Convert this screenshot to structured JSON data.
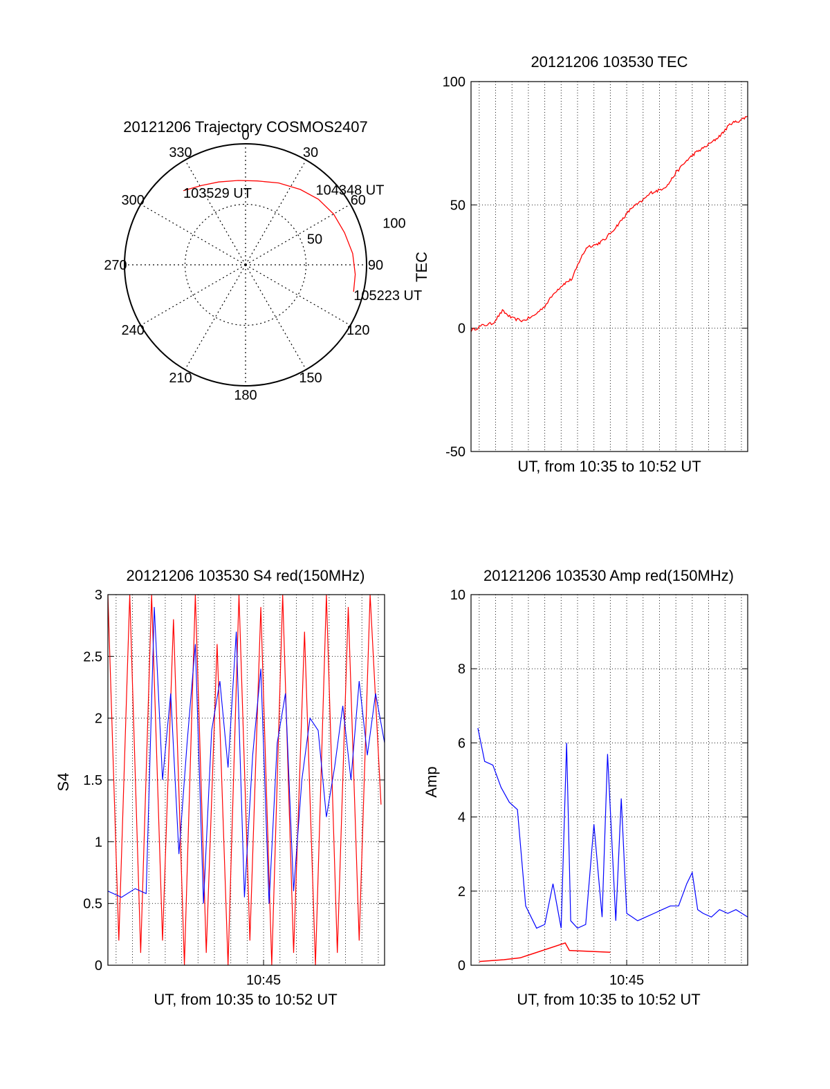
{
  "chart_data": [
    {
      "type": "polar",
      "title": "20121206 Trajectory COSMOS2407",
      "angle_labels": [
        "0",
        "30",
        "60",
        "90",
        "120",
        "150",
        "180",
        "210",
        "240",
        "270",
        "300",
        "330"
      ],
      "radial_tick_labels": [
        "50",
        "100"
      ],
      "radial_ticks": [
        50,
        100
      ],
      "radial_max": 100,
      "grid": true,
      "series": [
        {
          "color": "#ff0000",
          "points": [
            {
              "azimuth": 320,
              "zenith_distance": 80
            },
            {
              "azimuth": 331,
              "zenith_distance": 75
            },
            {
              "azimuth": 342,
              "zenith_distance": 72
            },
            {
              "azimuth": 355,
              "zenith_distance": 70
            },
            {
              "azimuth": 8,
              "zenith_distance": 70
            },
            {
              "azimuth": 22,
              "zenith_distance": 73
            },
            {
              "azimuth": 36,
              "zenith_distance": 77
            },
            {
              "azimuth": 48,
              "zenith_distance": 81
            },
            {
              "azimuth": 60,
              "zenith_distance": 84
            },
            {
              "azimuth": 72,
              "zenith_distance": 86
            },
            {
              "azimuth": 84,
              "zenith_distance": 89
            },
            {
              "azimuth": 95,
              "zenith_distance": 91
            },
            {
              "azimuth": 104,
              "zenith_distance": 92
            }
          ]
        }
      ],
      "annotations": [
        {
          "text": "103529 UT",
          "azimuth": 320,
          "zenith_distance": 80
        },
        {
          "text": "104348 UT",
          "azimuth": 45,
          "zenith_distance": 82
        },
        {
          "text": "105223 UT",
          "azimuth": 104,
          "zenith_distance": 92
        }
      ]
    },
    {
      "type": "line",
      "title": "20121206 103530 TEC",
      "xlabel": "UT, from 10:35 to 10:52 UT",
      "ylabel": "TEC",
      "xlim": [
        "10:35:30",
        "10:52:23"
      ],
      "ylim": [
        -50,
        100
      ],
      "y_ticks": [
        -50,
        0,
        50,
        100
      ],
      "x_tick_labels": [],
      "grid": true,
      "series": [
        {
          "color": "#ff0000",
          "x": [
            "10:35:30",
            "10:36:10",
            "10:36:50",
            "10:37:25",
            "10:38:00",
            "10:38:40",
            "10:39:20",
            "10:40:00",
            "10:40:40",
            "10:41:10",
            "10:41:40",
            "10:42:10",
            "10:42:35",
            "10:43:10",
            "10:43:40",
            "10:44:20",
            "10:44:50",
            "10:45:20",
            "10:45:50",
            "10:46:30",
            "10:47:00",
            "10:47:30",
            "10:48:00",
            "10:48:40",
            "10:49:10",
            "10:49:40",
            "10:50:20",
            "10:50:50",
            "10:51:20",
            "10:51:50",
            "10:52:23"
          ],
          "y": [
            -1,
            1,
            2,
            7,
            4,
            3,
            5,
            9,
            15,
            18,
            20,
            28,
            33,
            34,
            36,
            41,
            45,
            49,
            51,
            55,
            56,
            58,
            63,
            68,
            71,
            73,
            76,
            79,
            83,
            84,
            86
          ]
        }
      ]
    },
    {
      "type": "line",
      "title": "20121206 103530 S4 red(150MHz)",
      "xlabel": "UT, from 10:35 to 10:52 UT",
      "ylabel": "S4",
      "xlim": [
        "10:35:30",
        "10:52:23"
      ],
      "ylim": [
        0,
        3
      ],
      "y_tick_labels": [
        "0",
        "0.5",
        "1",
        "1.5",
        "2",
        "2.5",
        "3"
      ],
      "y_ticks": [
        0,
        0.5,
        1,
        1.5,
        2,
        2.5,
        3
      ],
      "x_tick_labels": [
        "10:45"
      ],
      "x_ticks": [
        "10:45:00"
      ],
      "grid": true,
      "series": [
        {
          "color": "#ff0000",
          "x": [
            "10:35:30",
            "10:36:10",
            "10:36:50",
            "10:37:30",
            "10:38:10",
            "10:38:50",
            "10:39:30",
            "10:40:10",
            "10:40:50",
            "10:41:30",
            "10:42:10",
            "10:42:50",
            "10:43:30",
            "10:44:10",
            "10:44:50",
            "10:45:30",
            "10:46:10",
            "10:46:50",
            "10:47:30",
            "10:48:10",
            "10:48:50",
            "10:49:30",
            "10:50:10",
            "10:50:50",
            "10:51:30",
            "10:52:10"
          ],
          "y": [
            3.0,
            0.2,
            3.0,
            0.1,
            3.0,
            0.2,
            2.8,
            0.0,
            3.0,
            0.1,
            2.6,
            0.0,
            3.0,
            0.2,
            2.9,
            0.0,
            3.0,
            0.1,
            2.7,
            0.0,
            3.0,
            0.1,
            2.9,
            0.2,
            3.0,
            1.3
          ]
        },
        {
          "color": "#0000ff",
          "x": [
            "10:35:30",
            "10:36:20",
            "10:37:10",
            "10:37:50",
            "10:38:20",
            "10:38:50",
            "10:39:20",
            "10:39:50",
            "10:40:20",
            "10:40:50",
            "10:41:20",
            "10:41:50",
            "10:42:20",
            "10:42:50",
            "10:43:20",
            "10:43:50",
            "10:44:20",
            "10:44:50",
            "10:45:20",
            "10:45:50",
            "10:46:20",
            "10:46:50",
            "10:47:20",
            "10:47:50",
            "10:48:20",
            "10:48:50",
            "10:49:20",
            "10:49:50",
            "10:50:20",
            "10:50:50",
            "10:51:20",
            "10:51:50",
            "10:52:23"
          ],
          "y": [
            0.6,
            0.55,
            0.62,
            0.58,
            2.9,
            1.5,
            2.2,
            0.9,
            1.8,
            2.6,
            0.5,
            1.9,
            2.3,
            1.6,
            2.7,
            0.55,
            1.7,
            2.4,
            0.5,
            1.8,
            2.2,
            0.6,
            1.5,
            2.0,
            1.9,
            1.2,
            1.6,
            2.1,
            1.5,
            2.3,
            1.7,
            2.2,
            1.8
          ]
        }
      ]
    },
    {
      "type": "line",
      "title": "20121206 103530 Amp red(150MHz)",
      "xlabel": "UT, from 10:35 to 10:52 UT",
      "ylabel": "Amp",
      "xlim": [
        "10:35:30",
        "10:52:23"
      ],
      "ylim": [
        0,
        10
      ],
      "y_tick_labels": [
        "0",
        "2",
        "4",
        "6",
        "8",
        "10"
      ],
      "y_ticks": [
        0,
        2,
        4,
        6,
        8,
        10
      ],
      "x_tick_labels": [
        "10:45"
      ],
      "x_ticks": [
        "10:45:00"
      ],
      "grid": true,
      "series": [
        {
          "color": "#0000ff",
          "x": [
            "10:35:55",
            "10:36:20",
            "10:36:50",
            "10:37:20",
            "10:37:50",
            "10:38:20",
            "10:38:50",
            "10:39:30",
            "10:40:00",
            "10:40:30",
            "10:41:00",
            "10:41:20",
            "10:41:35",
            "10:42:00",
            "10:42:30",
            "10:43:00",
            "10:43:30",
            "10:43:50",
            "10:44:20",
            "10:44:40",
            "10:45:00",
            "10:45:20",
            "10:45:40",
            "10:46:10",
            "10:46:40",
            "10:47:10",
            "10:47:40",
            "10:48:10",
            "10:48:40",
            "10:49:00",
            "10:49:20",
            "10:49:40",
            "10:50:10",
            "10:50:40",
            "10:51:10",
            "10:51:40",
            "10:52:23"
          ],
          "y": [
            6.4,
            5.5,
            5.4,
            4.8,
            4.4,
            4.2,
            1.6,
            1.0,
            1.1,
            2.2,
            1.0,
            6.0,
            1.2,
            1.0,
            1.1,
            3.8,
            1.3,
            5.7,
            1.2,
            4.5,
            1.4,
            1.3,
            1.2,
            1.3,
            1.4,
            1.5,
            1.6,
            1.6,
            2.2,
            2.5,
            1.5,
            1.4,
            1.3,
            1.5,
            1.4,
            1.5,
            1.3
          ]
        },
        {
          "color": "#ff0000",
          "x": [
            "10:36:00",
            "10:37:30",
            "10:38:30",
            "10:41:15",
            "10:41:30",
            "10:44:00"
          ],
          "y": [
            0.1,
            0.15,
            0.2,
            0.6,
            0.4,
            0.35
          ]
        }
      ]
    }
  ]
}
